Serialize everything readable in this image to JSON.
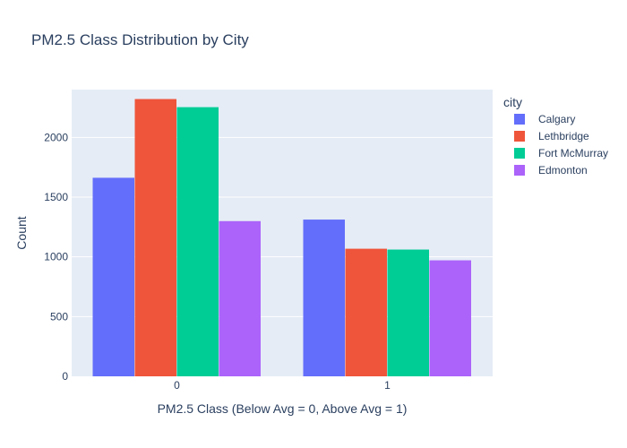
{
  "chart_data": {
    "type": "bar",
    "title": "PM2.5 Class Distribution by City",
    "xlabel": "PM2.5 Class (Below Avg = 0, Above Avg = 1)",
    "ylabel": "Count",
    "categories": [
      "0",
      "1"
    ],
    "ylim": [
      0,
      2400
    ],
    "yticks": [
      0,
      500,
      1000,
      1500,
      2000
    ],
    "grid": true,
    "legend_title": "city",
    "legend_position": "right",
    "series": [
      {
        "name": "Calgary",
        "color": "#636efa",
        "values": [
          1662,
          1312
        ]
      },
      {
        "name": "Lethbridge",
        "color": "#ef553b",
        "values": [
          2321,
          1068
        ]
      },
      {
        "name": "Fort McMurray",
        "color": "#00cc96",
        "values": [
          2253,
          1061
        ]
      },
      {
        "name": "Edmonton",
        "color": "#ab63fa",
        "values": [
          1299,
          971
        ]
      }
    ]
  }
}
